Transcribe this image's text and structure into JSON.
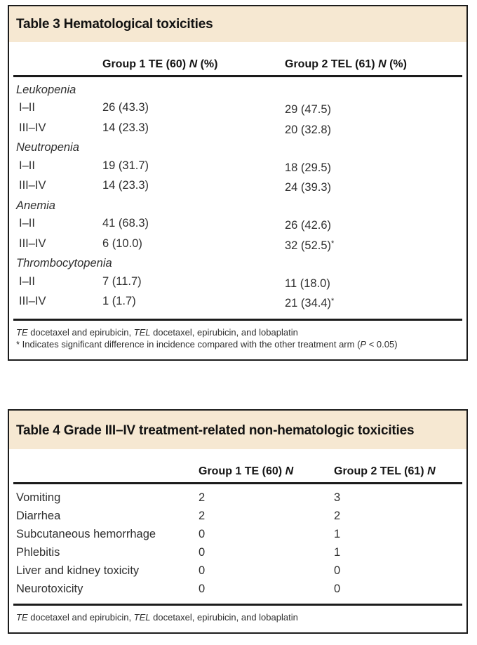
{
  "colors": {
    "band_beige": "#f6e8d2",
    "border_black": "#1b1b1b",
    "body_text": "#2f2f2f"
  },
  "table3": {
    "title": "Table 3 Hematological toxicities",
    "columns": [
      {
        "pre": "Group 1 TE (60) ",
        "n": "N",
        "post": " (%)"
      },
      {
        "pre": "Group 2 TEL (61) ",
        "n": "N",
        "post": " (%)"
      }
    ],
    "rows": [
      {
        "type": "section",
        "label": "Leukopenia"
      },
      {
        "type": "data",
        "label": "I–II",
        "v1": "26 (43.3)",
        "v2": "29 (47.5)"
      },
      {
        "type": "data",
        "label": "III–IV",
        "v1": "14 (23.3)",
        "v2": "20 (32.8)"
      },
      {
        "type": "section",
        "label": "Neutropenia"
      },
      {
        "type": "data",
        "label": "I–II",
        "v1": "19 (31.7)",
        "v2": "18 (29.5)"
      },
      {
        "type": "data",
        "label": "III–IV",
        "v1": "14 (23.3)",
        "v2": "24 (39.3)"
      },
      {
        "type": "section",
        "label": "Anemia"
      },
      {
        "type": "data",
        "label": "I–II",
        "v1": "41 (68.3)",
        "v2": "26 (42.6)"
      },
      {
        "type": "data",
        "label": "III–IV",
        "v1": "6 (10.0)",
        "v2": "32 (52.5)",
        "v2mark": "*"
      },
      {
        "type": "section",
        "label": "Thrombocytopenia"
      },
      {
        "type": "data",
        "label": "I–II",
        "v1": "7 (11.7)",
        "v2": "11 (18.0)"
      },
      {
        "type": "data",
        "label": "III–IV",
        "v1": "1 (1.7)",
        "v2": "21 (34.4)",
        "v2mark": "*"
      }
    ],
    "footnote_abbr": {
      "i1": "TE",
      "t1": " docetaxel and epirubicin, ",
      "i2": "TEL",
      "t2": " docetaxel, epirubicin, and lobaplatin"
    },
    "footnote_sig": {
      "pre": "* Indicates significant difference in incidence compared with the other treatment arm (",
      "i": "P",
      "post": " < 0.05)"
    }
  },
  "table4": {
    "title": "Table 4 Grade III–IV treatment-related non-hematologic toxicities",
    "columns": [
      {
        "pre": "Group 1 TE (60) ",
        "n": "N",
        "post": ""
      },
      {
        "pre": "Group 2 TEL (61) ",
        "n": "N",
        "post": ""
      }
    ],
    "rows": [
      {
        "label": "Vomiting",
        "v1": "2",
        "v2": "3"
      },
      {
        "label": "Diarrhea",
        "v1": "2",
        "v2": "2"
      },
      {
        "label": "Subcutaneous hemorrhage",
        "v1": "0",
        "v2": "1"
      },
      {
        "label": "Phlebitis",
        "v1": "0",
        "v2": "1"
      },
      {
        "label": "Liver and kidney toxicity",
        "v1": "0",
        "v2": "0"
      },
      {
        "label": "Neurotoxicity",
        "v1": "0",
        "v2": "0"
      }
    ],
    "footnote_abbr": {
      "i1": "TE",
      "t1": " docetaxel and epirubicin, ",
      "i2": "TEL",
      "t2": " docetaxel, epirubicin, and lobaplatin"
    }
  }
}
